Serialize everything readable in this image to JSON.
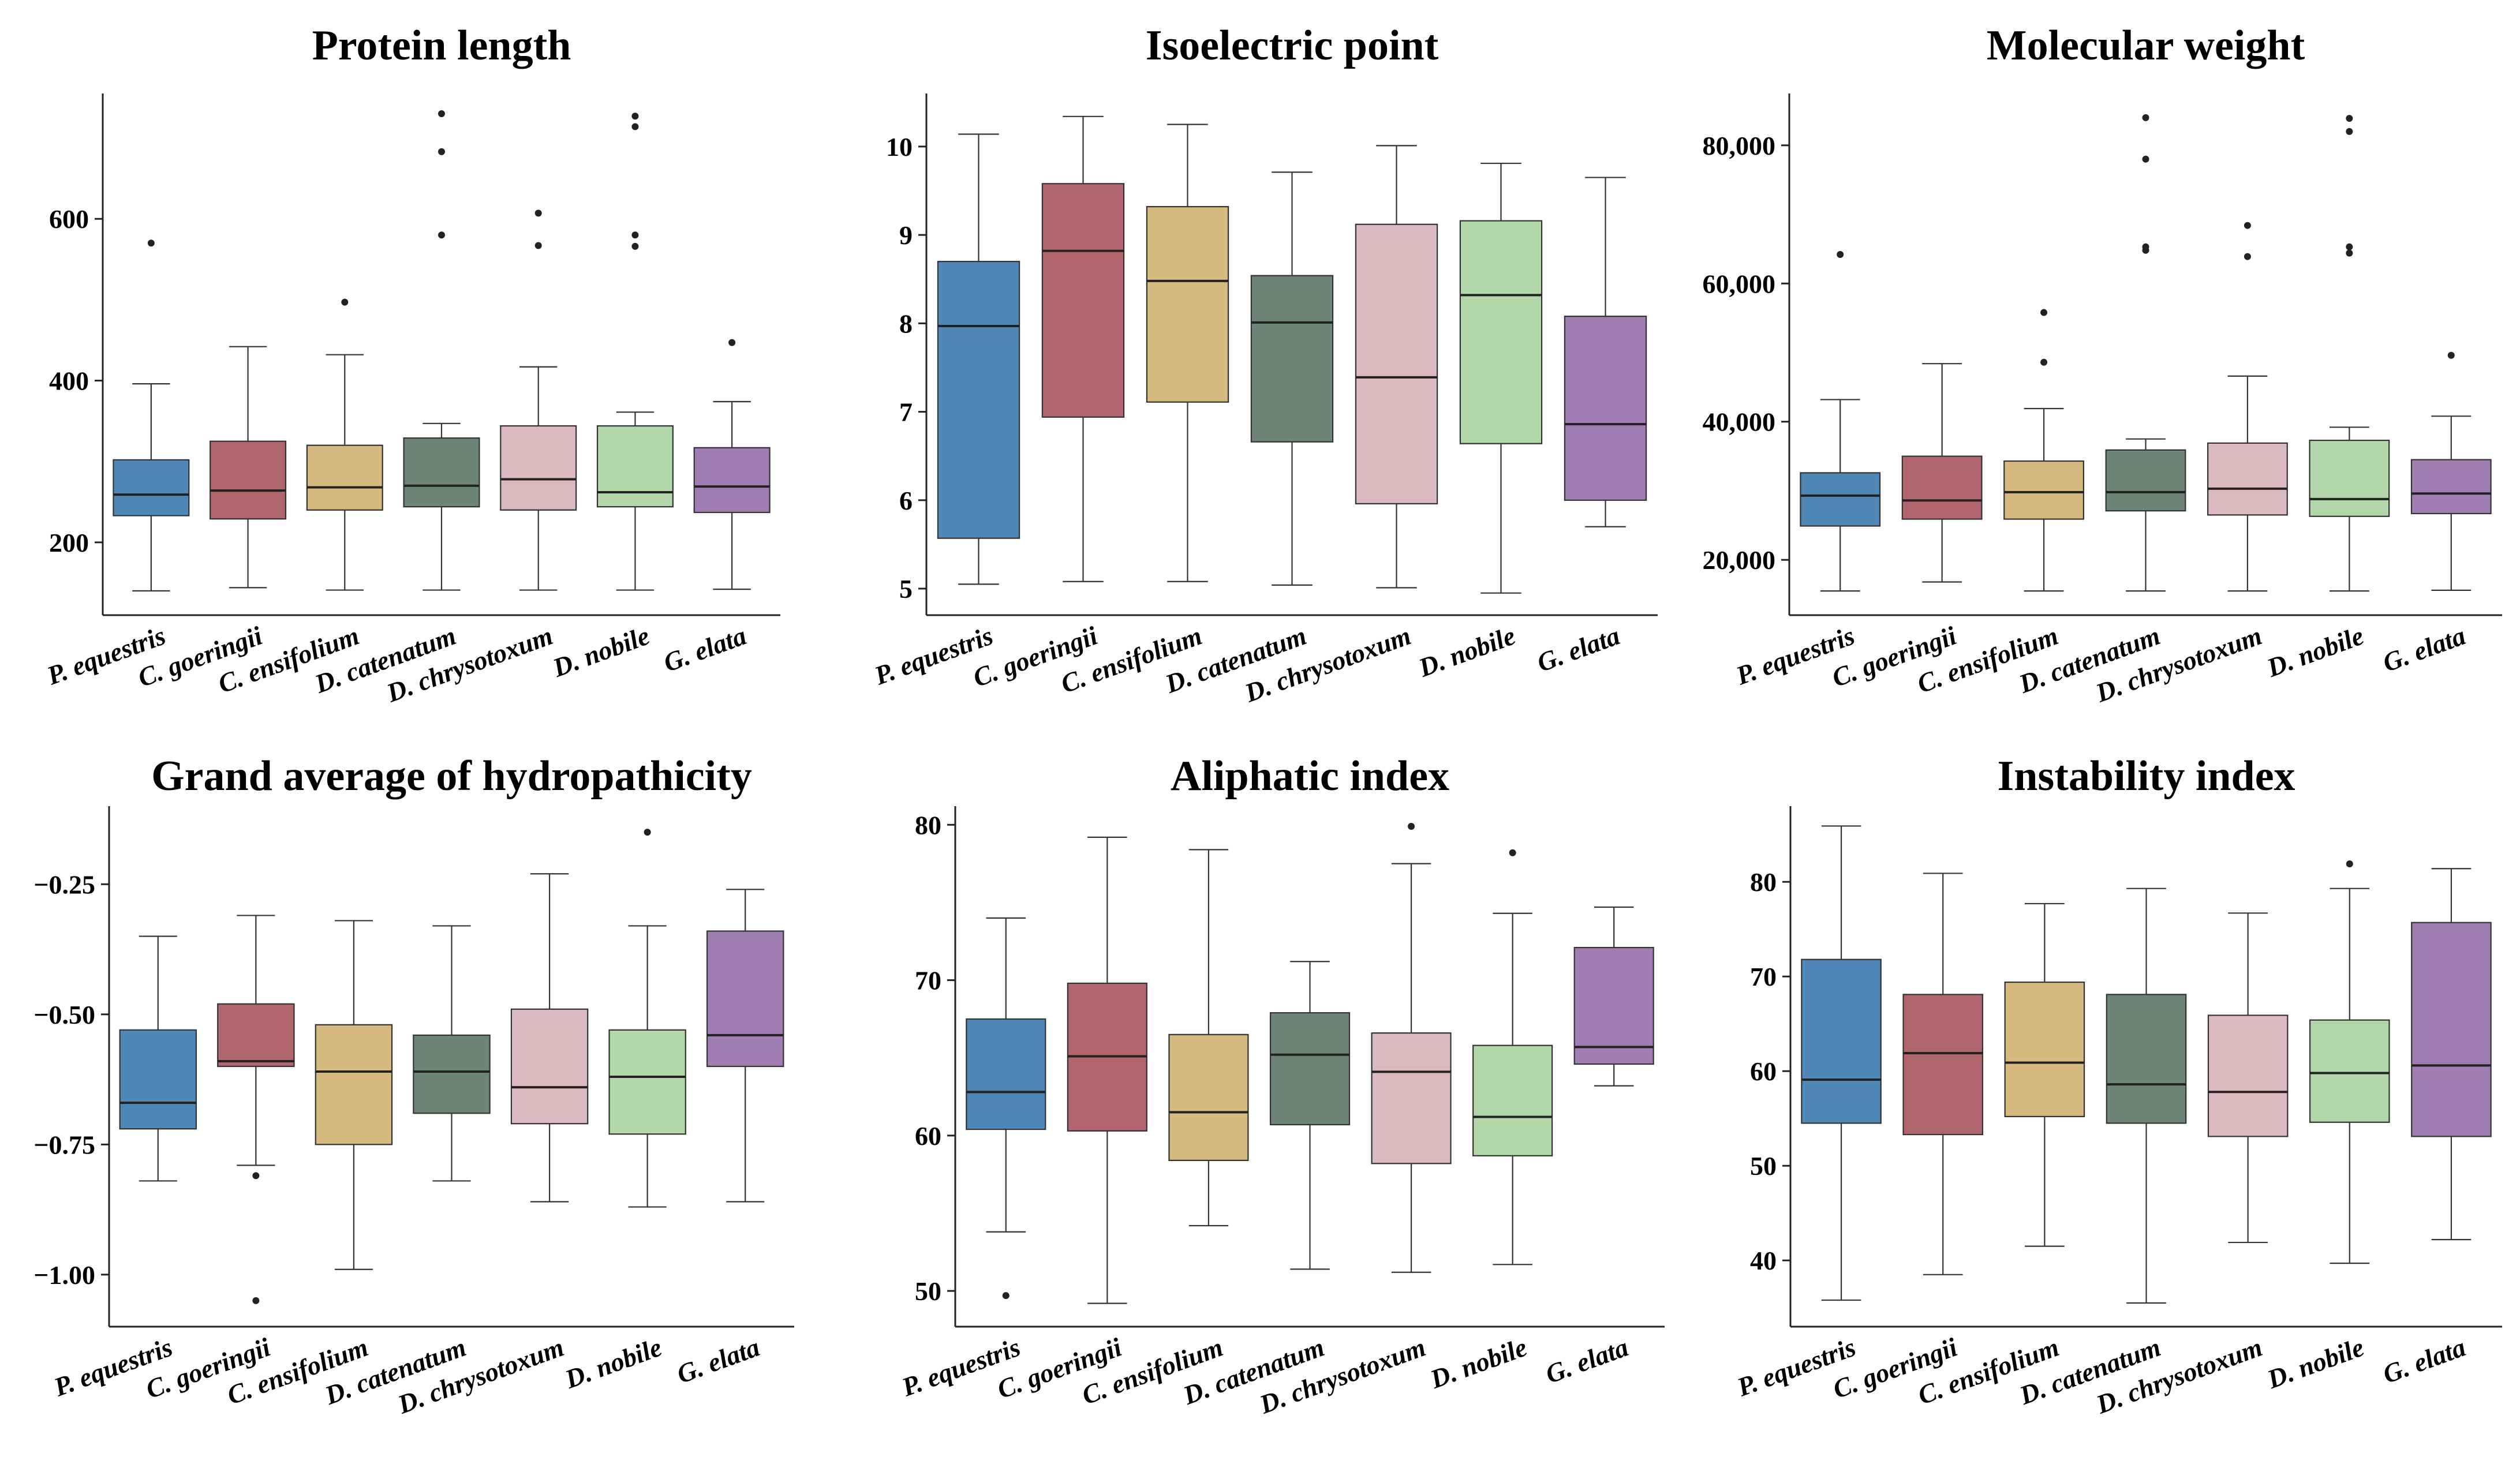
{
  "categories": [
    "P. equestris",
    "C. goeringii",
    "C. ensifolium",
    "D. catenatum",
    "D. chrysotoxum",
    "D. nobile",
    "G. elata"
  ],
  "colors": [
    "#4f88b7",
    "#b0666c",
    "#d6b97f",
    "#6d8577",
    "#dab9c1",
    "#b2d8a9",
    "#a07db3"
  ],
  "chart_data": [
    {
      "type": "box",
      "title": "Protein length",
      "yticks": [
        200,
        400,
        600
      ],
      "ytick_labels": [
        "200",
        "400",
        "600"
      ],
      "ylim": [
        110,
        755
      ],
      "boxes": [
        {
          "min": 140,
          "q1": 233,
          "median": 259,
          "q3": 302,
          "max": 396,
          "outliers": [
            570
          ]
        },
        {
          "min": 144,
          "q1": 229,
          "median": 264,
          "q3": 325,
          "max": 442,
          "outliers": []
        },
        {
          "min": 141,
          "q1": 240,
          "median": 268,
          "q3": 320,
          "max": 432,
          "outliers": [
            497
          ]
        },
        {
          "min": 141,
          "q1": 244,
          "median": 270,
          "q3": 329,
          "max": 347,
          "outliers": [
            580,
            683,
            730
          ]
        },
        {
          "min": 141,
          "q1": 240,
          "median": 278,
          "q3": 344,
          "max": 417,
          "outliers": [
            567,
            607
          ]
        },
        {
          "min": 141,
          "q1": 244,
          "median": 262,
          "q3": 344,
          "max": 361,
          "outliers": [
            566,
            580,
            714,
            727
          ]
        },
        {
          "min": 142,
          "q1": 237,
          "median": 269,
          "q3": 317,
          "max": 374,
          "outliers": [
            447
          ]
        }
      ]
    },
    {
      "type": "box",
      "title": "Isoelectric point",
      "yticks": [
        5,
        6,
        7,
        8,
        9,
        10
      ],
      "ytick_labels": [
        "5",
        "6",
        "7",
        "8",
        "9",
        "10"
      ],
      "ylim": [
        4.7,
        10.6
      ],
      "boxes": [
        {
          "min": 5.05,
          "q1": 5.57,
          "median": 7.97,
          "q3": 8.7,
          "max": 10.14,
          "outliers": []
        },
        {
          "min": 5.08,
          "q1": 6.94,
          "median": 8.82,
          "q3": 9.58,
          "max": 10.34,
          "outliers": []
        },
        {
          "min": 5.08,
          "q1": 7.11,
          "median": 8.48,
          "q3": 9.32,
          "max": 10.25,
          "outliers": []
        },
        {
          "min": 5.04,
          "q1": 6.66,
          "median": 8.01,
          "q3": 8.54,
          "max": 9.71,
          "outliers": []
        },
        {
          "min": 5.01,
          "q1": 5.96,
          "median": 7.39,
          "q3": 9.12,
          "max": 10.01,
          "outliers": []
        },
        {
          "min": 4.95,
          "q1": 6.64,
          "median": 8.32,
          "q3": 9.16,
          "max": 9.81,
          "outliers": []
        },
        {
          "min": 5.7,
          "q1": 6.0,
          "median": 6.86,
          "q3": 8.08,
          "max": 9.65,
          "outliers": []
        }
      ]
    },
    {
      "type": "box",
      "title": "Molecular weight",
      "yticks": [
        20000,
        40000,
        60000,
        80000
      ],
      "ytick_labels": [
        "20,000",
        "40,000",
        "60,000",
        "80,000"
      ],
      "ylim": [
        12000,
        87500
      ],
      "boxes": [
        {
          "min": 15500,
          "q1": 24900,
          "median": 29300,
          "q3": 32600,
          "max": 43200,
          "outliers": [
            64200
          ]
        },
        {
          "min": 16800,
          "q1": 25900,
          "median": 28600,
          "q3": 35000,
          "max": 48400,
          "outliers": []
        },
        {
          "min": 15500,
          "q1": 25900,
          "median": 29800,
          "q3": 34300,
          "max": 41900,
          "outliers": [
            48600,
            55800
          ]
        },
        {
          "min": 15500,
          "q1": 27100,
          "median": 29800,
          "q3": 35900,
          "max": 37500,
          "outliers": [
            64800,
            65300,
            78000,
            84000
          ]
        },
        {
          "min": 15500,
          "q1": 26500,
          "median": 30300,
          "q3": 36900,
          "max": 46600,
          "outliers": [
            63900,
            68400
          ]
        },
        {
          "min": 15500,
          "q1": 26300,
          "median": 28800,
          "q3": 37300,
          "max": 39200,
          "outliers": [
            64400,
            65300,
            82000,
            83900
          ]
        },
        {
          "min": 15600,
          "q1": 26700,
          "median": 29600,
          "q3": 34500,
          "max": 40800,
          "outliers": [
            49600
          ]
        }
      ]
    },
    {
      "type": "box",
      "title": "Grand average of hydropathicity",
      "yticks": [
        -1.0,
        -0.75,
        -0.5,
        -0.25
      ],
      "ytick_labels": [
        "−1.00",
        "−0.75",
        "−0.50",
        "−0.25"
      ],
      "ylim": [
        -1.1,
        -0.1
      ],
      "boxes": [
        {
          "min": -0.82,
          "q1": -0.72,
          "median": -0.67,
          "q3": -0.53,
          "max": -0.35,
          "outliers": []
        },
        {
          "min": -0.79,
          "q1": -0.6,
          "median": -0.59,
          "q3": -0.48,
          "max": -0.31,
          "outliers": [
            -0.81,
            -1.05
          ]
        },
        {
          "min": -0.99,
          "q1": -0.75,
          "median": -0.61,
          "q3": -0.52,
          "max": -0.32,
          "outliers": []
        },
        {
          "min": -0.82,
          "q1": -0.69,
          "median": -0.61,
          "q3": -0.54,
          "max": -0.33,
          "outliers": []
        },
        {
          "min": -0.86,
          "q1": -0.71,
          "median": -0.64,
          "q3": -0.49,
          "max": -0.23,
          "outliers": []
        },
        {
          "min": -0.87,
          "q1": -0.73,
          "median": -0.62,
          "q3": -0.53,
          "max": -0.33,
          "outliers": [
            -0.15
          ]
        },
        {
          "min": -0.86,
          "q1": -0.6,
          "median": -0.54,
          "q3": -0.34,
          "max": -0.26,
          "outliers": []
        }
      ]
    },
    {
      "type": "box",
      "title": "Aliphatic index",
      "yticks": [
        50,
        60,
        70,
        80
      ],
      "ytick_labels": [
        "50",
        "60",
        "70",
        "80"
      ],
      "ylim": [
        47.7,
        81.2
      ],
      "boxes": [
        {
          "min": 53.8,
          "q1": 60.4,
          "median": 62.8,
          "q3": 67.5,
          "max": 74.0,
          "outliers": [
            49.7
          ]
        },
        {
          "min": 49.2,
          "q1": 60.3,
          "median": 65.1,
          "q3": 69.8,
          "max": 79.2,
          "outliers": []
        },
        {
          "min": 54.2,
          "q1": 58.4,
          "median": 61.5,
          "q3": 66.5,
          "max": 78.4,
          "outliers": []
        },
        {
          "min": 51.4,
          "q1": 60.7,
          "median": 65.2,
          "q3": 67.9,
          "max": 71.2,
          "outliers": []
        },
        {
          "min": 51.2,
          "q1": 58.2,
          "median": 64.1,
          "q3": 66.6,
          "max": 77.5,
          "outliers": [
            79.9
          ]
        },
        {
          "min": 51.7,
          "q1": 58.7,
          "median": 61.2,
          "q3": 65.8,
          "max": 74.3,
          "outliers": [
            78.2
          ]
        },
        {
          "min": 63.2,
          "q1": 64.6,
          "median": 65.7,
          "q3": 72.1,
          "max": 74.7,
          "outliers": []
        }
      ]
    },
    {
      "type": "box",
      "title": "Instability index",
      "yticks": [
        40,
        50,
        60,
        70,
        80
      ],
      "ytick_labels": [
        "40",
        "50",
        "60",
        "70",
        "80"
      ],
      "ylim": [
        33,
        88
      ],
      "boxes": [
        {
          "min": 35.8,
          "q1": 54.5,
          "median": 59.1,
          "q3": 71.8,
          "max": 85.9,
          "outliers": []
        },
        {
          "min": 38.5,
          "q1": 53.3,
          "median": 61.9,
          "q3": 68.1,
          "max": 80.9,
          "outliers": []
        },
        {
          "min": 41.5,
          "q1": 55.2,
          "median": 60.9,
          "q3": 69.4,
          "max": 77.7,
          "outliers": []
        },
        {
          "min": 35.5,
          "q1": 54.5,
          "median": 58.6,
          "q3": 68.1,
          "max": 79.3,
          "outliers": []
        },
        {
          "min": 41.9,
          "q1": 53.1,
          "median": 57.8,
          "q3": 65.9,
          "max": 76.7,
          "outliers": []
        },
        {
          "min": 39.7,
          "q1": 54.6,
          "median": 59.8,
          "q3": 65.4,
          "max": 79.3,
          "outliers": [
            81.9
          ]
        },
        {
          "min": 42.2,
          "q1": 53.1,
          "median": 60.6,
          "q3": 75.7,
          "max": 81.4,
          "outliers": []
        }
      ]
    }
  ]
}
